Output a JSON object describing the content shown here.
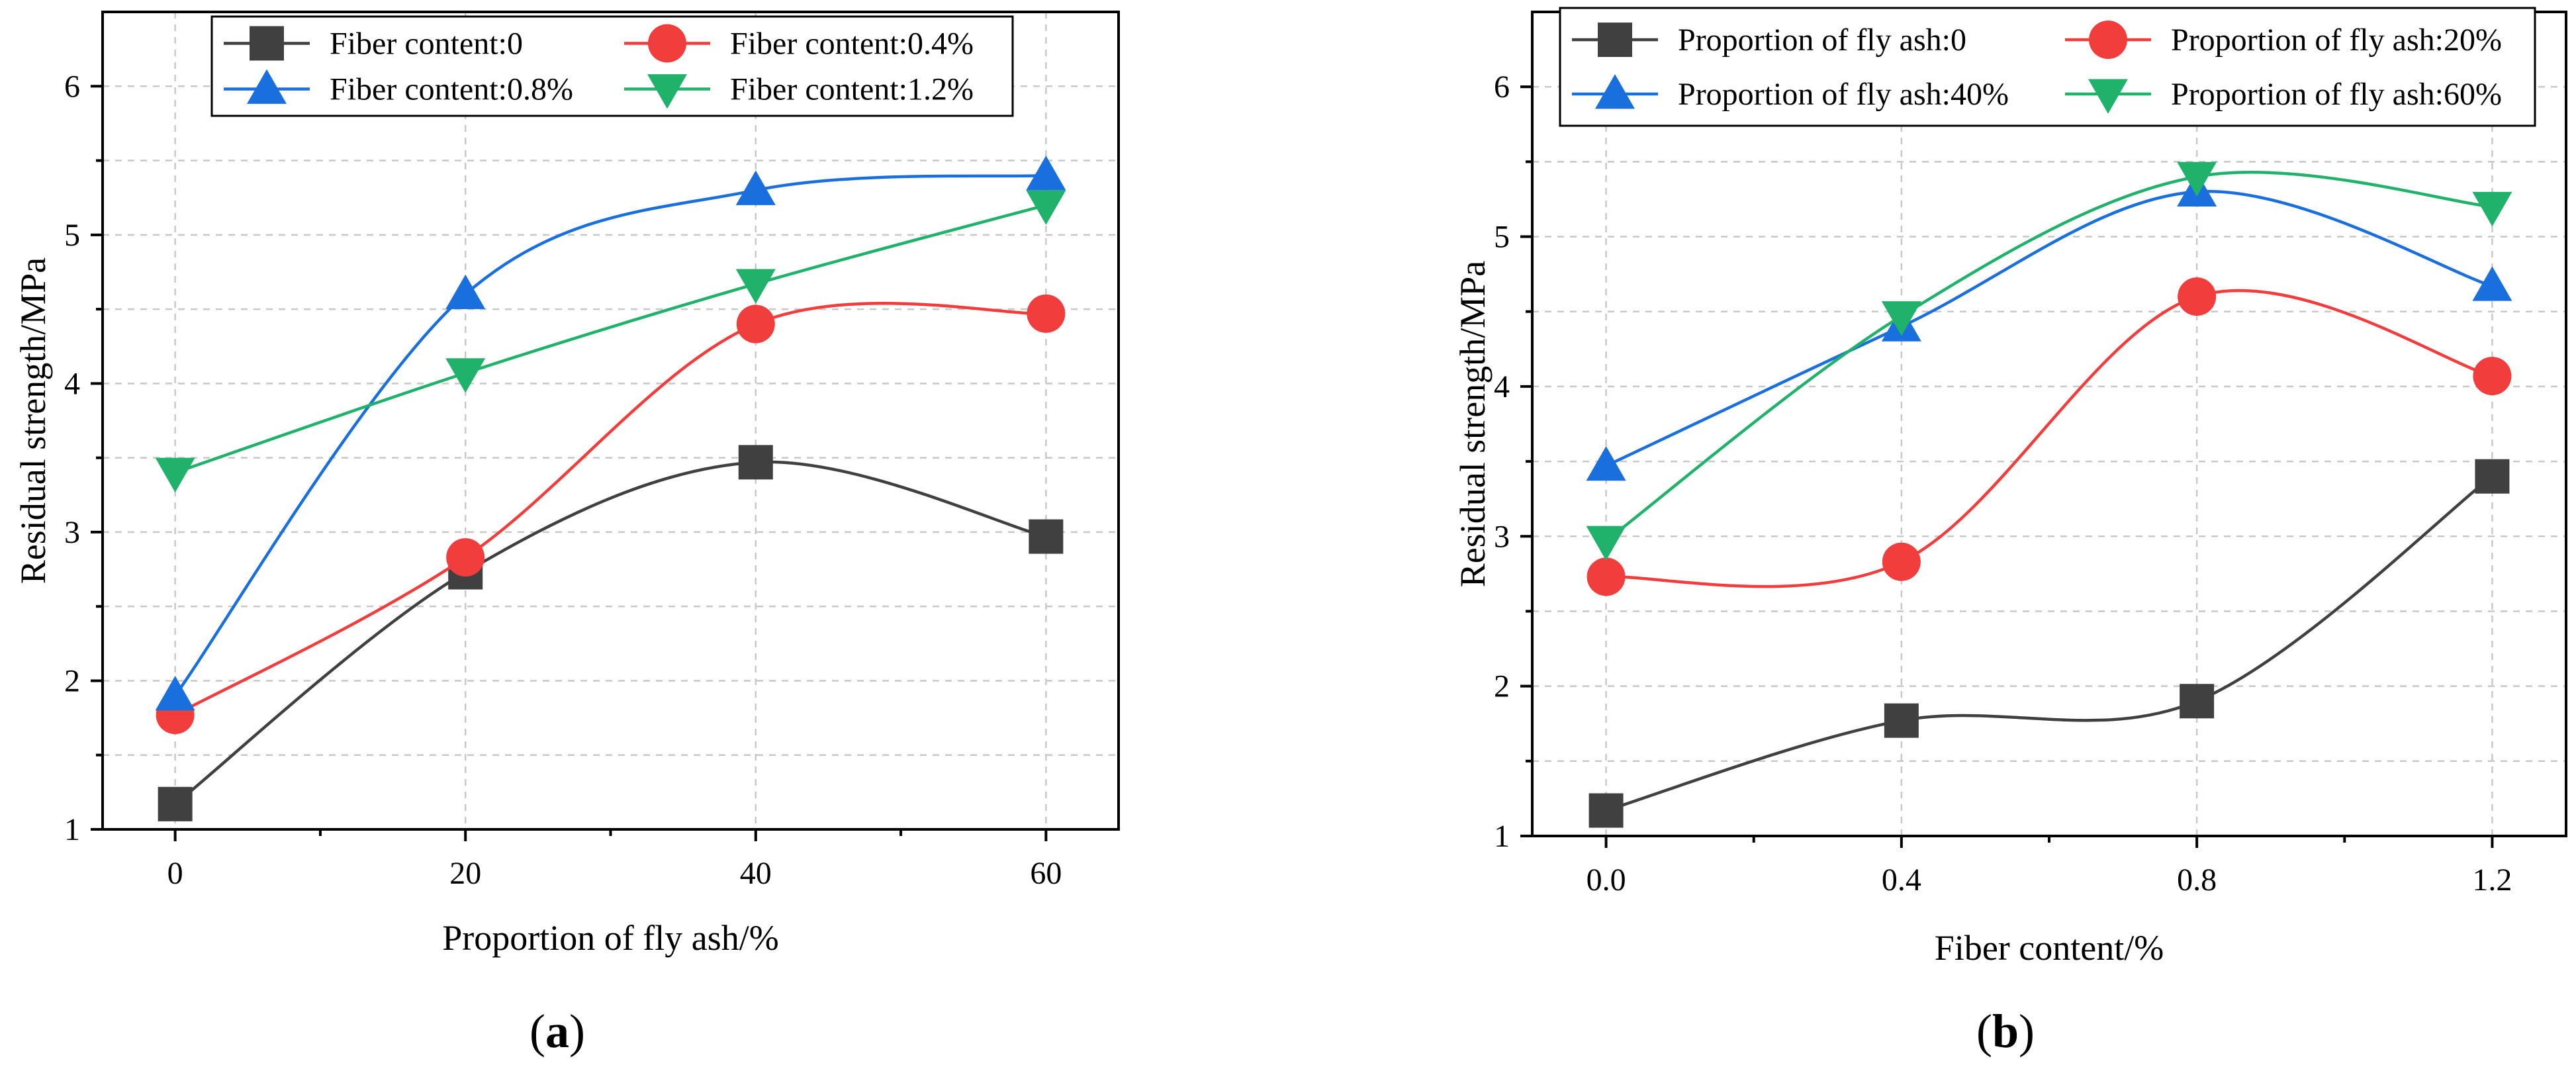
{
  "chart_data": [
    {
      "type": "line",
      "panel": "a",
      "xlabel": "Proportion of fly ash/%",
      "ylabel": "Residual strength/MPa",
      "x": [
        0,
        20,
        40,
        60
      ],
      "x_tick_labels": [
        "0",
        "20",
        "40",
        "60"
      ],
      "xlim": [
        -5,
        65
      ],
      "ylim": [
        1,
        6.5
      ],
      "y_ticks": [
        1,
        2,
        3,
        4,
        5,
        6
      ],
      "y_tick_labels": [
        "1",
        "2",
        "3",
        "4",
        "5",
        "6"
      ],
      "grid": true,
      "legend_position": "top",
      "series": [
        {
          "name": "Fiber content:0",
          "color": "#404040",
          "marker": "square",
          "values": [
            1.17,
            2.73,
            3.47,
            2.97
          ]
        },
        {
          "name": "Fiber content:0.4%",
          "color": "#f23d3d",
          "marker": "circle",
          "values": [
            1.77,
            2.83,
            4.4,
            4.47
          ]
        },
        {
          "name": "Fiber content:0.8%",
          "color": "#1a6fdf",
          "marker": "triangle-up",
          "values": [
            1.9,
            4.6,
            5.3,
            5.4
          ]
        },
        {
          "name": "Fiber content:1.2%",
          "color": "#20b26b",
          "marker": "triangle-down",
          "values": [
            3.4,
            4.07,
            4.67,
            5.2
          ]
        }
      ]
    },
    {
      "type": "line",
      "panel": "b",
      "xlabel": "Fiber content/%",
      "ylabel": "Residual strength/MPa",
      "x": [
        0.0,
        0.4,
        0.8,
        1.2
      ],
      "x_tick_labels": [
        "0.0",
        "0.4",
        "0.8",
        "1.2"
      ],
      "xlim": [
        -0.1,
        1.3
      ],
      "ylim": [
        1,
        6.5
      ],
      "y_ticks": [
        1,
        2,
        3,
        4,
        5,
        6
      ],
      "y_tick_labels": [
        "1",
        "2",
        "3",
        "4",
        "5",
        "6"
      ],
      "grid": true,
      "legend_position": "top",
      "series": [
        {
          "name": "Proportion of fly ash:0",
          "color": "#404040",
          "marker": "square",
          "values": [
            1.17,
            1.77,
            1.9,
            3.4
          ]
        },
        {
          "name": "Proportion of fly ash:20%",
          "color": "#f23d3d",
          "marker": "circle",
          "values": [
            2.73,
            2.83,
            4.6,
            4.07
          ]
        },
        {
          "name": "Proportion of fly ash:40%",
          "color": "#1a6fdf",
          "marker": "triangle-up",
          "values": [
            3.47,
            4.4,
            5.3,
            4.67
          ]
        },
        {
          "name": "Proportion of fly ash:60%",
          "color": "#20b26b",
          "marker": "triangle-down",
          "values": [
            2.97,
            4.47,
            5.4,
            5.2
          ]
        }
      ]
    }
  ],
  "panel_labels": {
    "a": {
      "open": "(",
      "letter": "a",
      "close": ")"
    },
    "b": {
      "open": "(",
      "letter": "b",
      "close": ")"
    }
  }
}
